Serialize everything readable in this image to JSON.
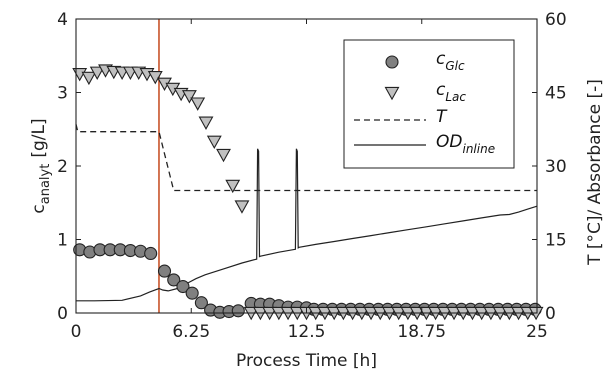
{
  "chart_data": {
    "type": "scatter",
    "xlabel": "Process Time [h]",
    "ylabel_left": "c",
    "ylabel_left_sub": "analyt",
    "ylabel_left_unit": "[g/L]",
    "ylabel_right": "T [°C]/ Absorbance [-]",
    "xlim": [
      0,
      25
    ],
    "ylim_left": [
      0,
      4
    ],
    "ylim_right": [
      0,
      60
    ],
    "x_ticks": [
      "0",
      "6.25",
      "12.5",
      "18.75",
      "25"
    ],
    "y_ticks_left": [
      "0",
      "1",
      "2",
      "3",
      "4"
    ],
    "y_ticks_right": [
      "0",
      "15",
      "30",
      "45",
      "60"
    ],
    "grid": false,
    "legend_position": "top-right",
    "vline_x": 4.5,
    "vline_color": "#c8532a",
    "series": [
      {
        "name": "c",
        "name_sub": "Glc",
        "kind": "scatter",
        "marker": "circle",
        "color": "#808080",
        "axis": "left",
        "x": [
          0.2,
          0.75,
          1.3,
          1.85,
          2.4,
          2.95,
          3.5,
          4.05,
          4.8,
          5.3,
          5.8,
          6.3,
          6.8,
          7.3,
          7.8,
          8.3,
          8.8,
          9.5,
          10.0,
          10.5,
          11.0,
          11.5,
          12.0,
          12.5
        ],
        "y": [
          0.86,
          0.83,
          0.86,
          0.86,
          0.86,
          0.85,
          0.84,
          0.81,
          0.57,
          0.45,
          0.36,
          0.27,
          0.14,
          0.04,
          0.01,
          0.02,
          0.03,
          0.13,
          0.12,
          0.12,
          0.1,
          0.08,
          0.08,
          0.07
        ]
      },
      {
        "name": "",
        "kind": "scatter",
        "marker": "circle",
        "color": "#808080",
        "axis": "left",
        "x": [
          12.9,
          13.4,
          13.9,
          14.4,
          14.9,
          15.4,
          15.9,
          16.4,
          16.9,
          17.4,
          17.9,
          18.4,
          18.9,
          19.4,
          19.9,
          20.4,
          20.9,
          21.4,
          21.9,
          22.4,
          22.9,
          23.4,
          23.9,
          24.4,
          24.9
        ],
        "y": [
          0.05,
          0.05,
          0.05,
          0.05,
          0.05,
          0.05,
          0.05,
          0.05,
          0.05,
          0.05,
          0.05,
          0.05,
          0.05,
          0.05,
          0.05,
          0.05,
          0.05,
          0.05,
          0.05,
          0.05,
          0.05,
          0.05,
          0.05,
          0.05,
          0.05
        ]
      },
      {
        "name": "c",
        "name_sub": "Lac",
        "kind": "scatter",
        "marker": "triangle-down",
        "color": "#c0c0c0",
        "axis": "left",
        "x": [
          0.2,
          0.7,
          1.15,
          1.6,
          2.05,
          2.5,
          2.95,
          3.4,
          3.85,
          4.3,
          4.8,
          5.25,
          5.7,
          6.15,
          6.6,
          7.05,
          7.5,
          8.0,
          8.5,
          9.0,
          9.5,
          10.0,
          10.5,
          11.0,
          11.5,
          12.0,
          12.5,
          13.0,
          13.5,
          14.0,
          14.5,
          15.0,
          15.5,
          16.0,
          16.5,
          17.0,
          17.5,
          18.0,
          18.5,
          19.0,
          19.5,
          20.0,
          20.5,
          21.0,
          21.5,
          22.0,
          22.5,
          23.0,
          23.5,
          24.0,
          24.5,
          24.95
        ],
        "y": [
          3.25,
          3.2,
          3.27,
          3.3,
          3.28,
          3.27,
          3.27,
          3.27,
          3.25,
          3.21,
          3.12,
          3.05,
          2.98,
          2.95,
          2.85,
          2.59,
          2.33,
          2.15,
          1.73,
          1.45,
          0.0,
          0.0,
          0.0,
          0.0,
          0.0,
          0.0,
          0.0,
          0.0,
          0.0,
          0.0,
          0.0,
          0.0,
          0.0,
          0.0,
          0.0,
          0.0,
          0.0,
          0.0,
          0.0,
          0.0,
          0.0,
          0.0,
          0.0,
          0.0,
          0.0,
          0.0,
          0.0,
          0.0,
          0.0,
          0.0,
          0.0,
          0.0
        ]
      },
      {
        "name": "T",
        "kind": "line",
        "dash": "dashed",
        "color": "#222222",
        "axis": "right",
        "x": [
          0,
          0.1,
          4.5,
          5.3,
          25
        ],
        "y": [
          38.5,
          37.0,
          37.0,
          25.0,
          25.0
        ]
      },
      {
        "name": "OD",
        "name_sub": "inline",
        "kind": "line",
        "dash": "solid",
        "color": "#222222",
        "axis": "right",
        "x": [
          0,
          1.0,
          2.5,
          3.5,
          4.0,
          4.5,
          4.7,
          5.0,
          5.5,
          6.0,
          6.5,
          7.0,
          8.0,
          9.0,
          9.8,
          9.85,
          9.9,
          9.95,
          10.0,
          11.0,
          11.9,
          11.95,
          12.0,
          12.05,
          12.1,
          13.0,
          14.0,
          15.0,
          16.0,
          17.0,
          18.0,
          19.0,
          20.0,
          21.0,
          22.0,
          23.0,
          23.5,
          24.0,
          24.5,
          25.0
        ],
        "y": [
          2.5,
          2.5,
          2.6,
          3.5,
          4.3,
          5.0,
          4.7,
          4.5,
          5.0,
          6.0,
          7.0,
          7.8,
          9.0,
          10.2,
          11.0,
          33.5,
          33.0,
          11.5,
          11.6,
          12.4,
          13.0,
          33.5,
          33.0,
          13.3,
          13.4,
          14.0,
          14.6,
          15.2,
          15.8,
          16.4,
          17.0,
          17.6,
          18.2,
          18.8,
          19.4,
          20.0,
          20.1,
          20.6,
          21.2,
          21.8
        ]
      }
    ]
  }
}
